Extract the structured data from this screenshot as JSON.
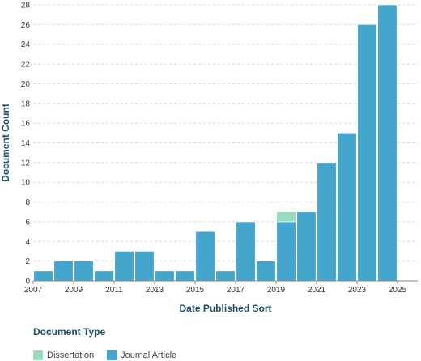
{
  "chart_data": {
    "type": "bar",
    "stacked": true,
    "categories": [
      "2007",
      "2008",
      "2009",
      "2010",
      "2011",
      "2012",
      "2013",
      "2014",
      "2015",
      "2016",
      "2017",
      "2018",
      "2019",
      "2020",
      "2021",
      "2022",
      "2023",
      "2024",
      "2025"
    ],
    "series": [
      {
        "name": "Journal Article",
        "color": "#45a6cd",
        "values": [
          1,
          2,
          2,
          1,
          3,
          3,
          1,
          1,
          5,
          1,
          6,
          2,
          6,
          7,
          12,
          15,
          26,
          28,
          0
        ]
      },
      {
        "name": "Dissertation",
        "color": "#99dbbd",
        "values": [
          0,
          0,
          0,
          0,
          0,
          0,
          0,
          0,
          0,
          0,
          0,
          0,
          1,
          0,
          0,
          0,
          0,
          0,
          0
        ]
      }
    ],
    "x_tick_labels": [
      "2007",
      "2009",
      "2011",
      "2013",
      "2015",
      "2017",
      "2019",
      "2021",
      "2023",
      "2025"
    ],
    "y_ticks": [
      0,
      2,
      4,
      6,
      8,
      10,
      12,
      14,
      16,
      18,
      20,
      22,
      24,
      26,
      28
    ],
    "ylim": [
      0,
      28
    ],
    "xlabel": "Date Published Sort",
    "ylabel": "Document Count",
    "grid": true,
    "legend": {
      "title": "Document Type",
      "position": "bottom-left",
      "items": [
        {
          "label": "Dissertation",
          "color": "#99dbbd"
        },
        {
          "label": "Journal Article",
          "color": "#45a6cd"
        }
      ]
    }
  }
}
